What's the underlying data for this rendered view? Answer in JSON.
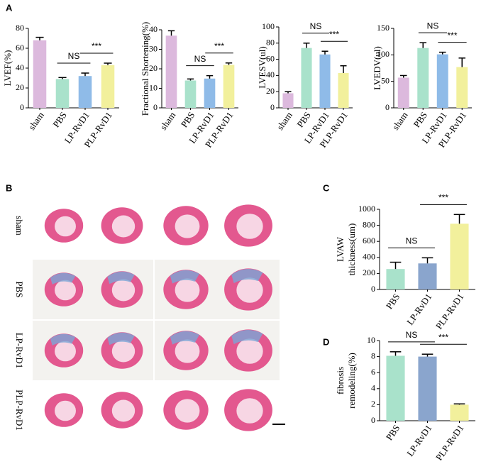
{
  "panels": [
    "A",
    "B",
    "C",
    "D"
  ],
  "histology_rows": [
    "sham",
    "PBS",
    "LP-RvD1",
    "PLP-RvD1"
  ],
  "chart_data": [
    {
      "type": "bar",
      "y_label": "LVEF(%)",
      "categories": [
        "sham",
        "PBS",
        "LP-RvD1",
        "PLP-RvD1"
      ],
      "colors": [
        "#dcb9dd",
        "#a9e2cb",
        "#8fbbe8",
        "#f2f09c"
      ],
      "values": [
        68,
        29,
        32,
        43
      ],
      "errors": [
        3,
        1.5,
        3,
        2
      ],
      "ylim": [
        0,
        80
      ],
      "yticks": [
        0,
        20,
        40,
        60,
        80
      ],
      "annotations": [
        {
          "text": "NS",
          "between": [
            "PBS",
            "LP-RvD1"
          ]
        },
        {
          "text": "***",
          "between": [
            "LP-RvD1",
            "PLP-RvD1"
          ]
        }
      ]
    },
    {
      "type": "bar",
      "y_label": "Fractional Shortening(%)",
      "categories": [
        "sham",
        "PBS",
        "LP-RvD1",
        "PLP-RvD1"
      ],
      "colors": [
        "#dcb9dd",
        "#a9e2cb",
        "#8fbbe8",
        "#f2f09c"
      ],
      "values": [
        37,
        14,
        15,
        22
      ],
      "errors": [
        2.5,
        0.8,
        1.5,
        1
      ],
      "ylim": [
        0,
        40
      ],
      "yticks": [
        0,
        10,
        20,
        30,
        40
      ],
      "annotations": [
        {
          "text": "NS",
          "between": [
            "PBS",
            "LP-RvD1"
          ]
        },
        {
          "text": "***",
          "between": [
            "LP-RvD1",
            "PLP-RvD1"
          ]
        }
      ]
    },
    {
      "type": "bar",
      "y_label": "LVESV(ul)",
      "categories": [
        "sham",
        "PBS",
        "LP-RvD1",
        "PLP-RvD1"
      ],
      "colors": [
        "#dcb9dd",
        "#a9e2cb",
        "#8fbbe8",
        "#f2f09c"
      ],
      "values": [
        18,
        74,
        66,
        43
      ],
      "errors": [
        2,
        6,
        4,
        9
      ],
      "ylim": [
        0,
        100
      ],
      "yticks": [
        0,
        20,
        40,
        60,
        80,
        100
      ],
      "annotations": [
        {
          "text": "NS",
          "between": [
            "PBS",
            "LP-RvD1"
          ]
        },
        {
          "text": "***",
          "between": [
            "LP-RvD1",
            "PLP-RvD1"
          ]
        }
      ]
    },
    {
      "type": "bar",
      "y_label": "LVEDV(ul)",
      "categories": [
        "sham",
        "PBS",
        "LP-RvD1",
        "PLP-RvD1"
      ],
      "colors": [
        "#dcb9dd",
        "#a9e2cb",
        "#8fbbe8",
        "#f2f09c"
      ],
      "values": [
        57,
        113,
        101,
        77
      ],
      "errors": [
        4,
        10,
        4,
        17
      ],
      "ylim": [
        0,
        150
      ],
      "yticks": [
        0,
        50,
        100,
        150
      ],
      "annotations": [
        {
          "text": "NS",
          "between": [
            "PBS",
            "LP-RvD1"
          ]
        },
        {
          "text": "***",
          "between": [
            "LP-RvD1",
            "PLP-RvD1"
          ]
        }
      ]
    },
    {
      "type": "bar",
      "y_label": [
        "LVAW",
        "thickness(um)"
      ],
      "categories": [
        "PBS",
        "LP-RvD1",
        "PLP-RvD1"
      ],
      "colors": [
        "#a9e2cb",
        "#8aa5cd",
        "#f2f09c"
      ],
      "values": [
        255,
        325,
        820
      ],
      "errors": [
        85,
        70,
        115
      ],
      "ylim": [
        0,
        1000
      ],
      "yticks": [
        0,
        200,
        400,
        600,
        800,
        1000
      ],
      "annotations": [
        {
          "text": "NS",
          "between": [
            "PBS",
            "LP-RvD1"
          ]
        },
        {
          "text": "***",
          "between": [
            "LP-RvD1",
            "PLP-RvD1"
          ]
        }
      ]
    },
    {
      "type": "bar",
      "y_label": [
        "fibrosis",
        "remodeling(%)"
      ],
      "categories": [
        "PBS",
        "LP-RvD1",
        "PLP-RvD1"
      ],
      "colors": [
        "#a9e2cb",
        "#8aa5cd",
        "#f2f09c"
      ],
      "values": [
        8.1,
        8.0,
        2.0
      ],
      "errors": [
        0.5,
        0.3,
        0.1
      ],
      "ylim": [
        0,
        10
      ],
      "yticks": [
        0,
        2,
        4,
        6,
        8,
        10
      ],
      "annotations": [
        {
          "text": "NS",
          "between": [
            "PBS",
            "LP-RvD1"
          ]
        },
        {
          "text": "***",
          "between": [
            "LP-RvD1",
            "PLP-RvD1"
          ]
        }
      ]
    }
  ]
}
